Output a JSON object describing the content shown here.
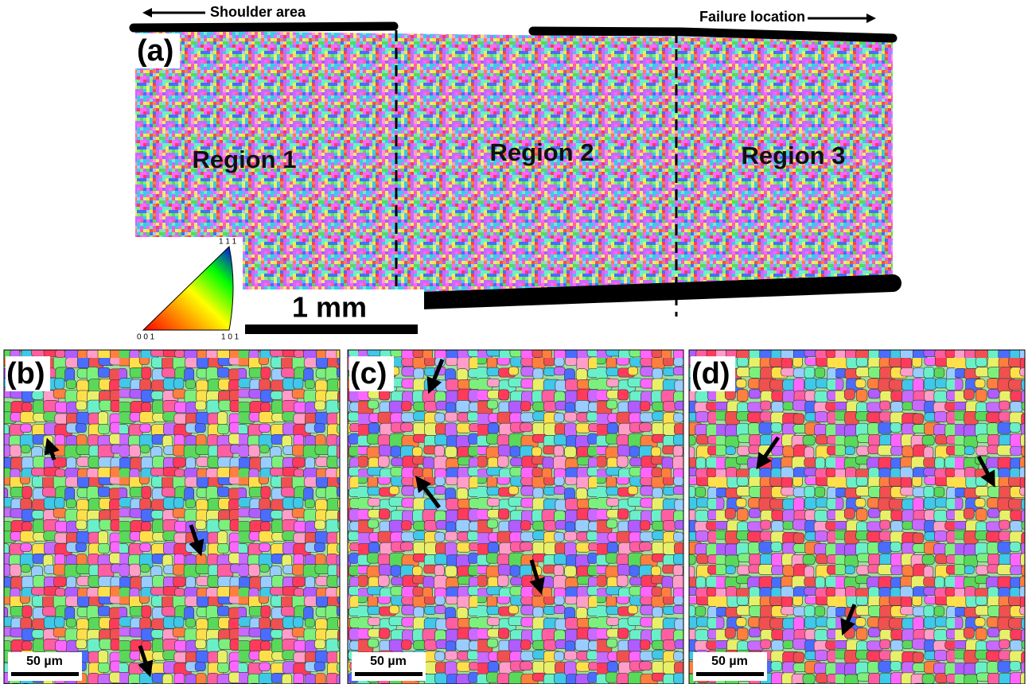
{
  "panel_a": {
    "label": "(a)",
    "shoulder": "Shoulder area",
    "failure": "Failure location",
    "regions": [
      "Region 1",
      "Region 2",
      "Region 3"
    ],
    "scale_bar": "1 mm",
    "ipf_labels": [
      "1 1 1",
      "0 0 1",
      "1 0 1"
    ]
  },
  "panels": [
    {
      "label": "(b)",
      "scale_bar": "50 µm"
    },
    {
      "label": "(c)",
      "scale_bar": "50 µm"
    },
    {
      "label": "(d)",
      "scale_bar": "50 µm"
    }
  ]
}
